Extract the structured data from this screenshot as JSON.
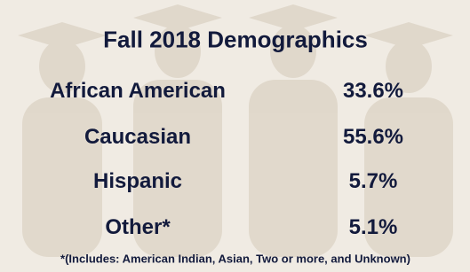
{
  "title": "Fall 2018 Demographics",
  "table": {
    "rows": [
      [
        "African American",
        "33.6%"
      ],
      [
        "Caucasian",
        "55.6%"
      ],
      [
        "Hispanic",
        "5.7%"
      ],
      [
        "Other*",
        "5.1%"
      ]
    ]
  },
  "footnote": "*(Includes: American Indian, Asian, Two or more, and Unknown)"
}
